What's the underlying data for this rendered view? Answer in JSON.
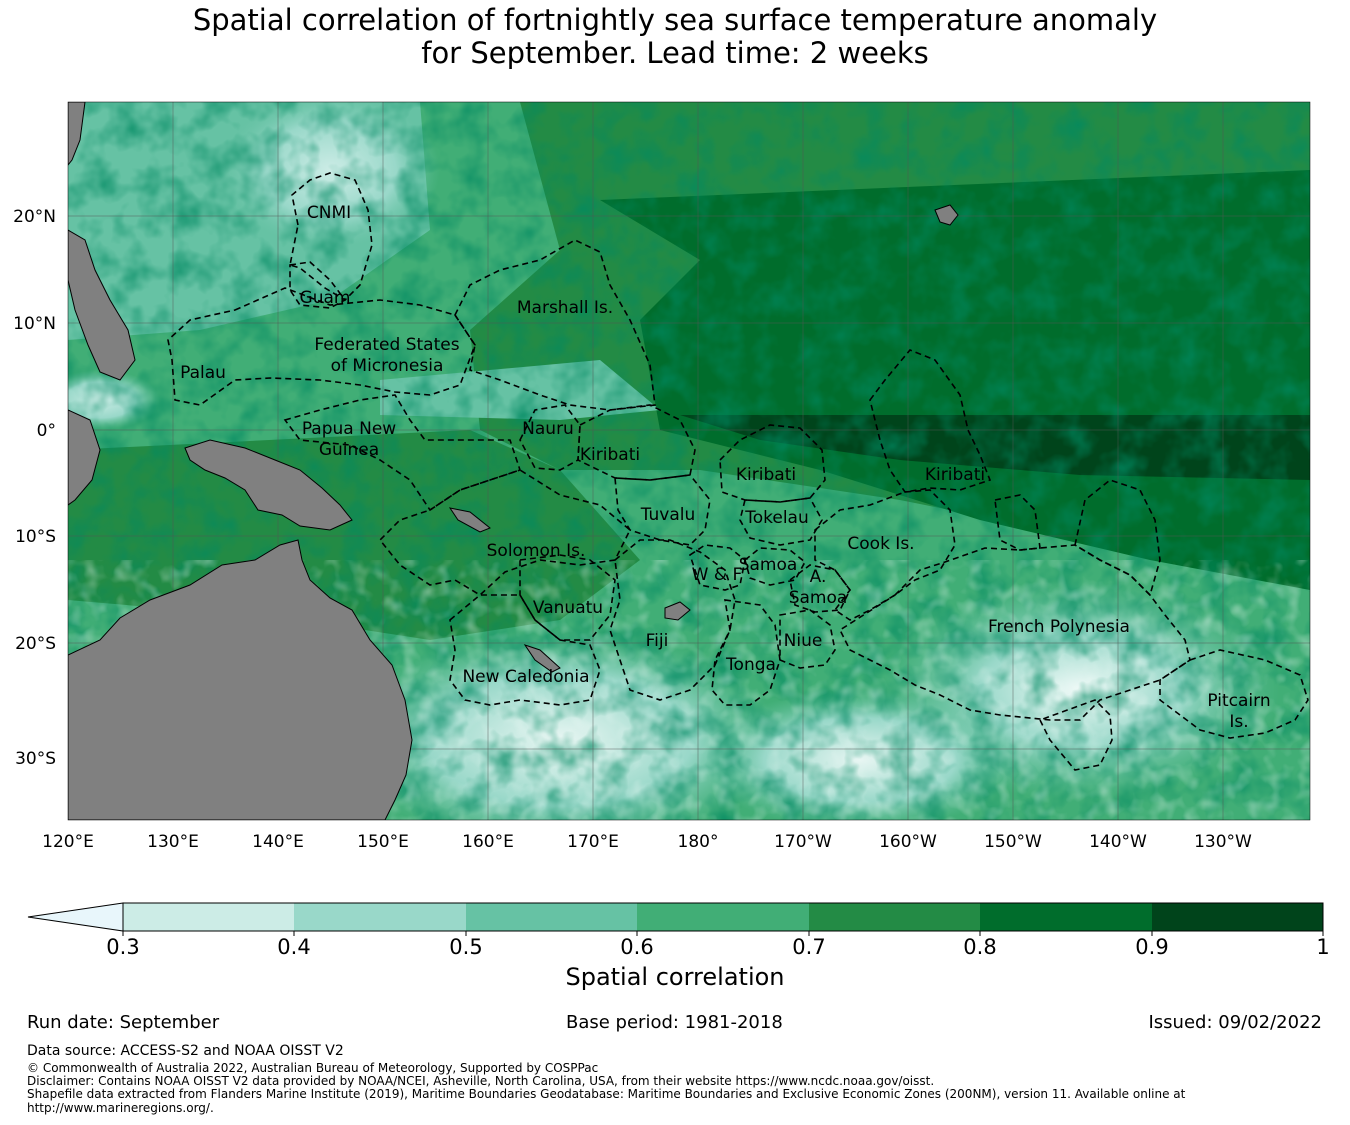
{
  "title": {
    "line1": "Spatial correlation of fortnightly sea surface temperature anomaly",
    "line2": "for September. Lead time: 2 weeks"
  },
  "map": {
    "extent": {
      "lon_min": 120,
      "lon_max": 238,
      "lat_min": -36,
      "lat_max": 31
    },
    "lon_ticks": [
      "120°E",
      "130°E",
      "140°E",
      "150°E",
      "160°E",
      "170°E",
      "180°",
      "170°W",
      "160°W",
      "150°W",
      "140°W",
      "130°W"
    ],
    "lat_ticks": [
      "20°N",
      "10°N",
      "0°",
      "10°S",
      "20°S",
      "30°S"
    ],
    "land_color": "#808080",
    "eez_labels": [
      "CNMI",
      "Guam",
      "Marshall Is.",
      "Federated States",
      "of Micronesia",
      "Palau",
      "Papua New",
      "Guinea",
      "Nauru",
      "Kiribati",
      "Kiribati",
      "Kiribati",
      "Tuvalu",
      "Tokelau",
      "Solomon Is.",
      "Samoa",
      "W & F",
      "A.",
      "Samoa",
      "Cook Is.",
      "Vanuatu",
      "Fiji",
      "Niue",
      "Tonga",
      "French Polynesia",
      "New Caledonia",
      "Pitcairn",
      "Is."
    ]
  },
  "colorbar": {
    "ticks": [
      "0.3",
      "0.4",
      "0.5",
      "0.6",
      "0.7",
      "0.8",
      "0.9",
      "1"
    ],
    "colors": [
      "#ccece6",
      "#99d8c9",
      "#66c2a4",
      "#41ae76",
      "#238b45",
      "#006d2c",
      "#00441b"
    ],
    "under_color": "#e8f6fb",
    "label": "Spatial correlation"
  },
  "meta": {
    "run_date": "Run date: September",
    "base_period": "Base period: 1981-2018",
    "issued": "Issued: 09/02/2022"
  },
  "footer": {
    "data_source": "Data source: ACCESS-S2 and NOAA OISST V2",
    "copyright": "© Commonwealth of Australia 2022, Australian Bureau of Meteorology, Supported by COSPPac",
    "disclaimer": "Disclaimer: Contains NOAA OISST V2 data provided by NOAA/NCEI, Asheville, North Carolina, USA, from their website https://www.ncdc.noaa.gov/oisst.",
    "shapefile_line1": "Shapefile data extracted from Flanders Marine Institute (2019), Maritime Boundaries Geodatabase: Maritime Boundaries and Exclusive Economic Zones (200NM), version 11. Available online at",
    "shapefile_line2": "http://www.marineregions.org/."
  }
}
